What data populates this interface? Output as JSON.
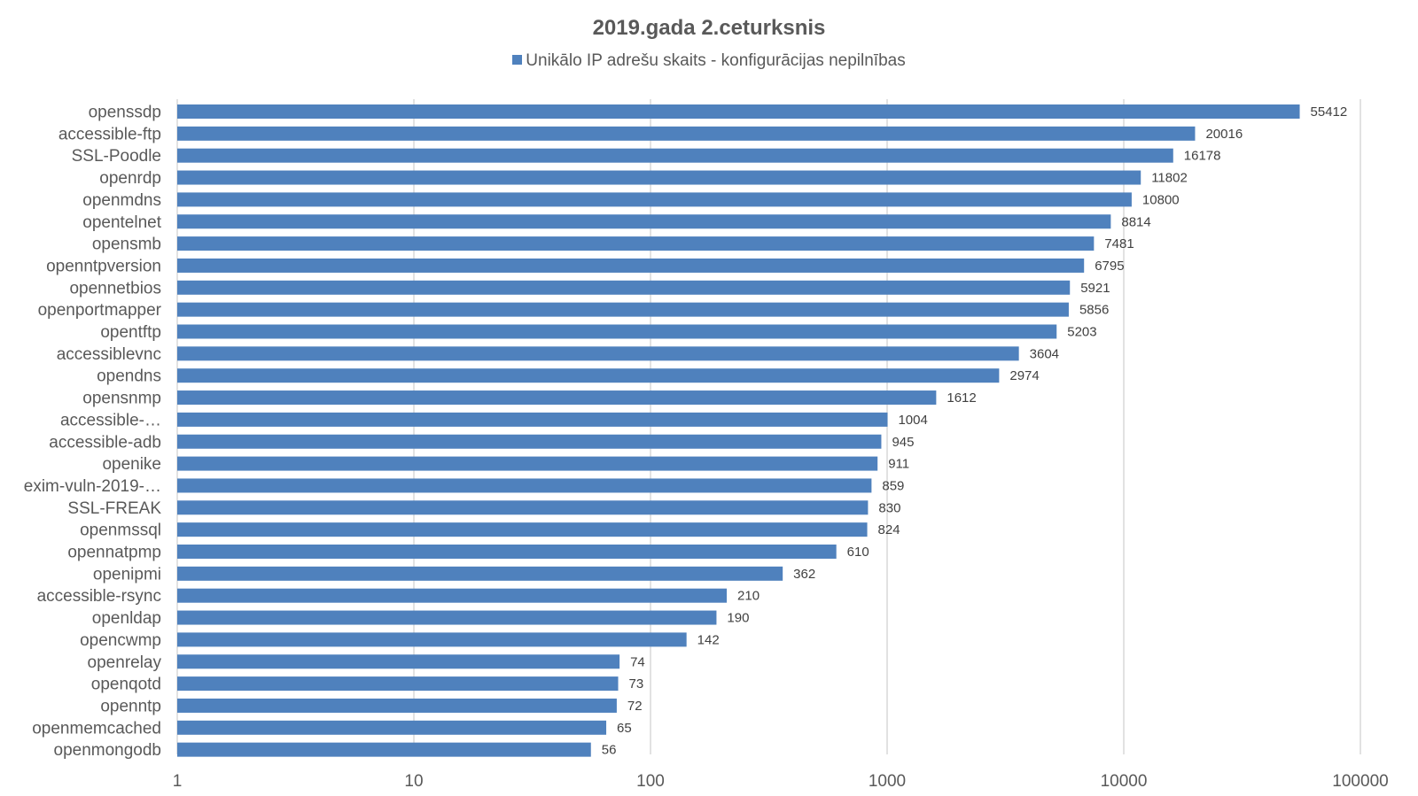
{
  "chart_data": {
    "type": "bar",
    "orientation": "horizontal",
    "title": "2019.gada 2.ceturksnis",
    "legend_position": "top",
    "x_scale": "log",
    "xlim": [
      1,
      100000
    ],
    "x_ticks": [
      "1",
      "10",
      "100",
      "1000",
      "10000",
      "100000"
    ],
    "grid": true,
    "series": [
      {
        "name": "Unikālo IP adrešu skaits  -  konfigurācijas nepilnības",
        "color": "#4f81bd",
        "values": [
          55412,
          20016,
          16178,
          11802,
          10800,
          8814,
          7481,
          6795,
          5921,
          5856,
          5203,
          3604,
          2974,
          1612,
          1004,
          945,
          911,
          859,
          830,
          824,
          610,
          362,
          210,
          190,
          142,
          74,
          73,
          72,
          65,
          56
        ]
      }
    ],
    "categories": [
      "openssdp",
      "accessible-ftp",
      "SSL-Poodle",
      "openrdp",
      "openmdns",
      "opentelnet",
      "opensmb",
      "openntpversion",
      "opennetbios",
      "openportmapper",
      "opentftp",
      "accessiblevnc",
      "opendns",
      "opensnmp",
      "accessible-…",
      "accessible-adb",
      "openike",
      "exim-vuln-2019-…",
      "SSL-FREAK",
      "openmssql",
      "opennatpmp",
      "openipmi",
      "accessible-rsync",
      "openldap",
      "opencwmp",
      "openrelay",
      "openqotd",
      "openntp",
      "openmemcached",
      "openmongodb"
    ]
  }
}
